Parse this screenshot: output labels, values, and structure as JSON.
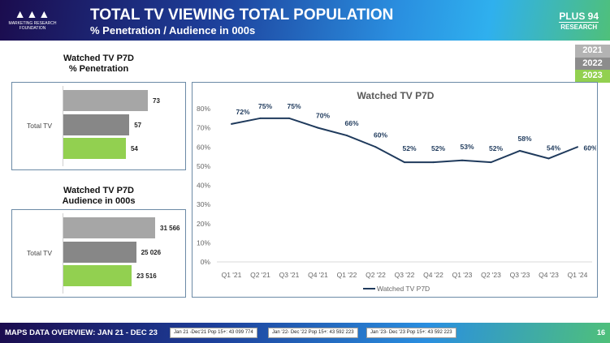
{
  "header": {
    "logo_text": "MARKETING RESEARCH FOUNDATION",
    "title": "TOTAL TV VIEWING TOTAL POPULATION",
    "subtitle": "% Penetration / Audience in 000s",
    "brand_line1": "PLUS 94",
    "brand_line2": "RESEARCH"
  },
  "year_legend": [
    {
      "label": "2021",
      "color": "#b3b3b3"
    },
    {
      "label": "2022",
      "color": "#8c8c8c"
    },
    {
      "label": "2023",
      "color": "#92d050"
    }
  ],
  "footer": {
    "title": "MAPS DATA OVERVIEW: JAN 21 - DEC 23",
    "boxes": [
      "Jan 21 -Dec'21 Pop 15+: 43 099 774",
      "Jan '22- Dec '22 Pop 15+: 43 592 223",
      "Jan '23- Dec '23 Pop 15+: 43 592 223"
    ],
    "page": "16"
  },
  "chart_data": [
    {
      "type": "bar",
      "orientation": "horizontal",
      "title": "Watched TV P7D\n% Penetration",
      "title_line1": "Watched TV P7D",
      "title_line2": "% Penetration",
      "categories": [
        "Total TV"
      ],
      "series": [
        {
          "name": "2021",
          "values": [
            73
          ],
          "labels": [
            "73"
          ],
          "color": "#a6a6a6"
        },
        {
          "name": "2022",
          "values": [
            57
          ],
          "labels": [
            "57"
          ],
          "color": "#878787"
        },
        {
          "name": "2023",
          "values": [
            54
          ],
          "labels": [
            "54"
          ],
          "color": "#92d050"
        }
      ]
    },
    {
      "type": "bar",
      "orientation": "horizontal",
      "title": "Watched TV P7D\nAudience in 000s",
      "title_line1": "Watched TV P7D",
      "title_line2": "Audience in 000s",
      "categories": [
        "Total TV"
      ],
      "series": [
        {
          "name": "2021",
          "values": [
            31566
          ],
          "labels": [
            "31 566"
          ],
          "color": "#a6a6a6"
        },
        {
          "name": "2022",
          "values": [
            25026
          ],
          "labels": [
            "25 026"
          ],
          "color": "#878787"
        },
        {
          "name": "2023",
          "values": [
            23516
          ],
          "labels": [
            "23 516"
          ],
          "color": "#92d050"
        }
      ]
    },
    {
      "type": "line",
      "title": "Watched TV P7D",
      "categories": [
        "Q1 '21",
        "Q2 '21",
        "Q3 '21",
        "Q4 '21",
        "Q1 '22",
        "Q2 '22",
        "Q3 '22",
        "Q4 '22",
        "Q1 '23",
        "Q2 '23",
        "Q3 '23",
        "Q4 '23",
        "Q1 '24"
      ],
      "series": [
        {
          "name": "Watched TV P7D",
          "values": [
            72,
            75,
            75,
            70,
            66,
            60,
            52,
            52,
            53,
            52,
            58,
            54,
            60
          ],
          "color": "#1f3a5c"
        }
      ],
      "yticks": [
        "0%",
        "10%",
        "20%",
        "30%",
        "40%",
        "50%",
        "60%",
        "70%",
        "80%"
      ],
      "ylim": [
        0,
        80
      ],
      "legend": "bottom",
      "grid": false
    }
  ]
}
